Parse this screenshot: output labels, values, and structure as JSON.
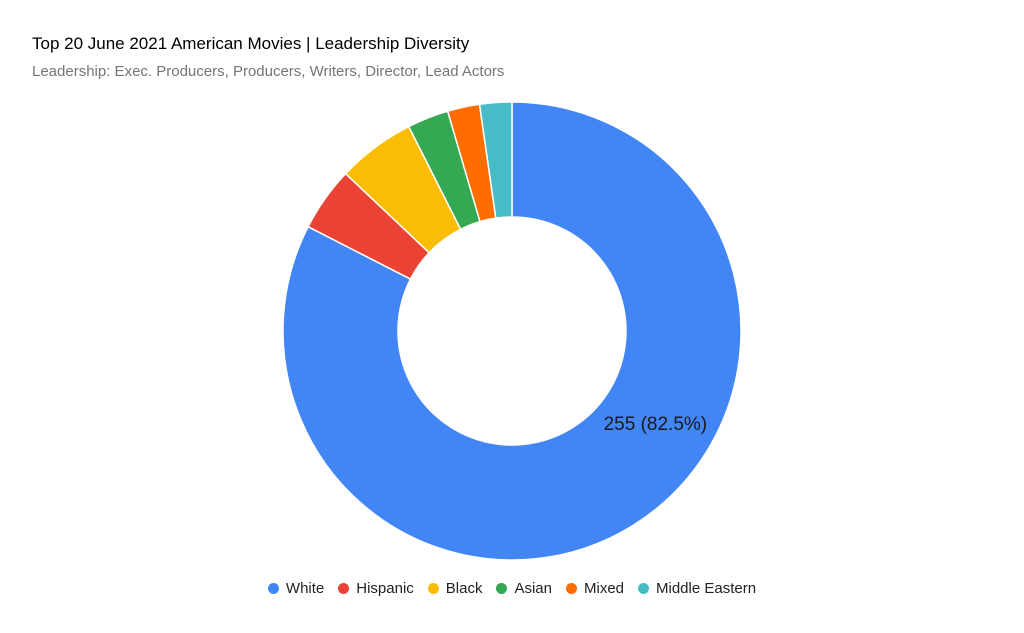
{
  "chart_data": {
    "type": "pie",
    "title": "Top 20 June 2021 American Movies | Leadership Diversity",
    "subtitle": "Leadership: Exec. Producers, Producers, Writers, Director, Lead Actors",
    "hole": true,
    "legend_position": "bottom",
    "slices": [
      {
        "name": "White",
        "value": 255,
        "color": "#4285f4",
        "label": "255 (82.5%)"
      },
      {
        "name": "Hispanic",
        "value": 14,
        "color": "#ea4335",
        "label": ""
      },
      {
        "name": "Black",
        "value": 17,
        "color": "#fbbc04",
        "label": ""
      },
      {
        "name": "Asian",
        "value": 9,
        "color": "#34a853",
        "label": ""
      },
      {
        "name": "Mixed",
        "value": 7,
        "color": "#ff6d01",
        "label": ""
      },
      {
        "name": "Middle Eastern",
        "value": 7,
        "color": "#46bdc6",
        "label": ""
      }
    ]
  }
}
